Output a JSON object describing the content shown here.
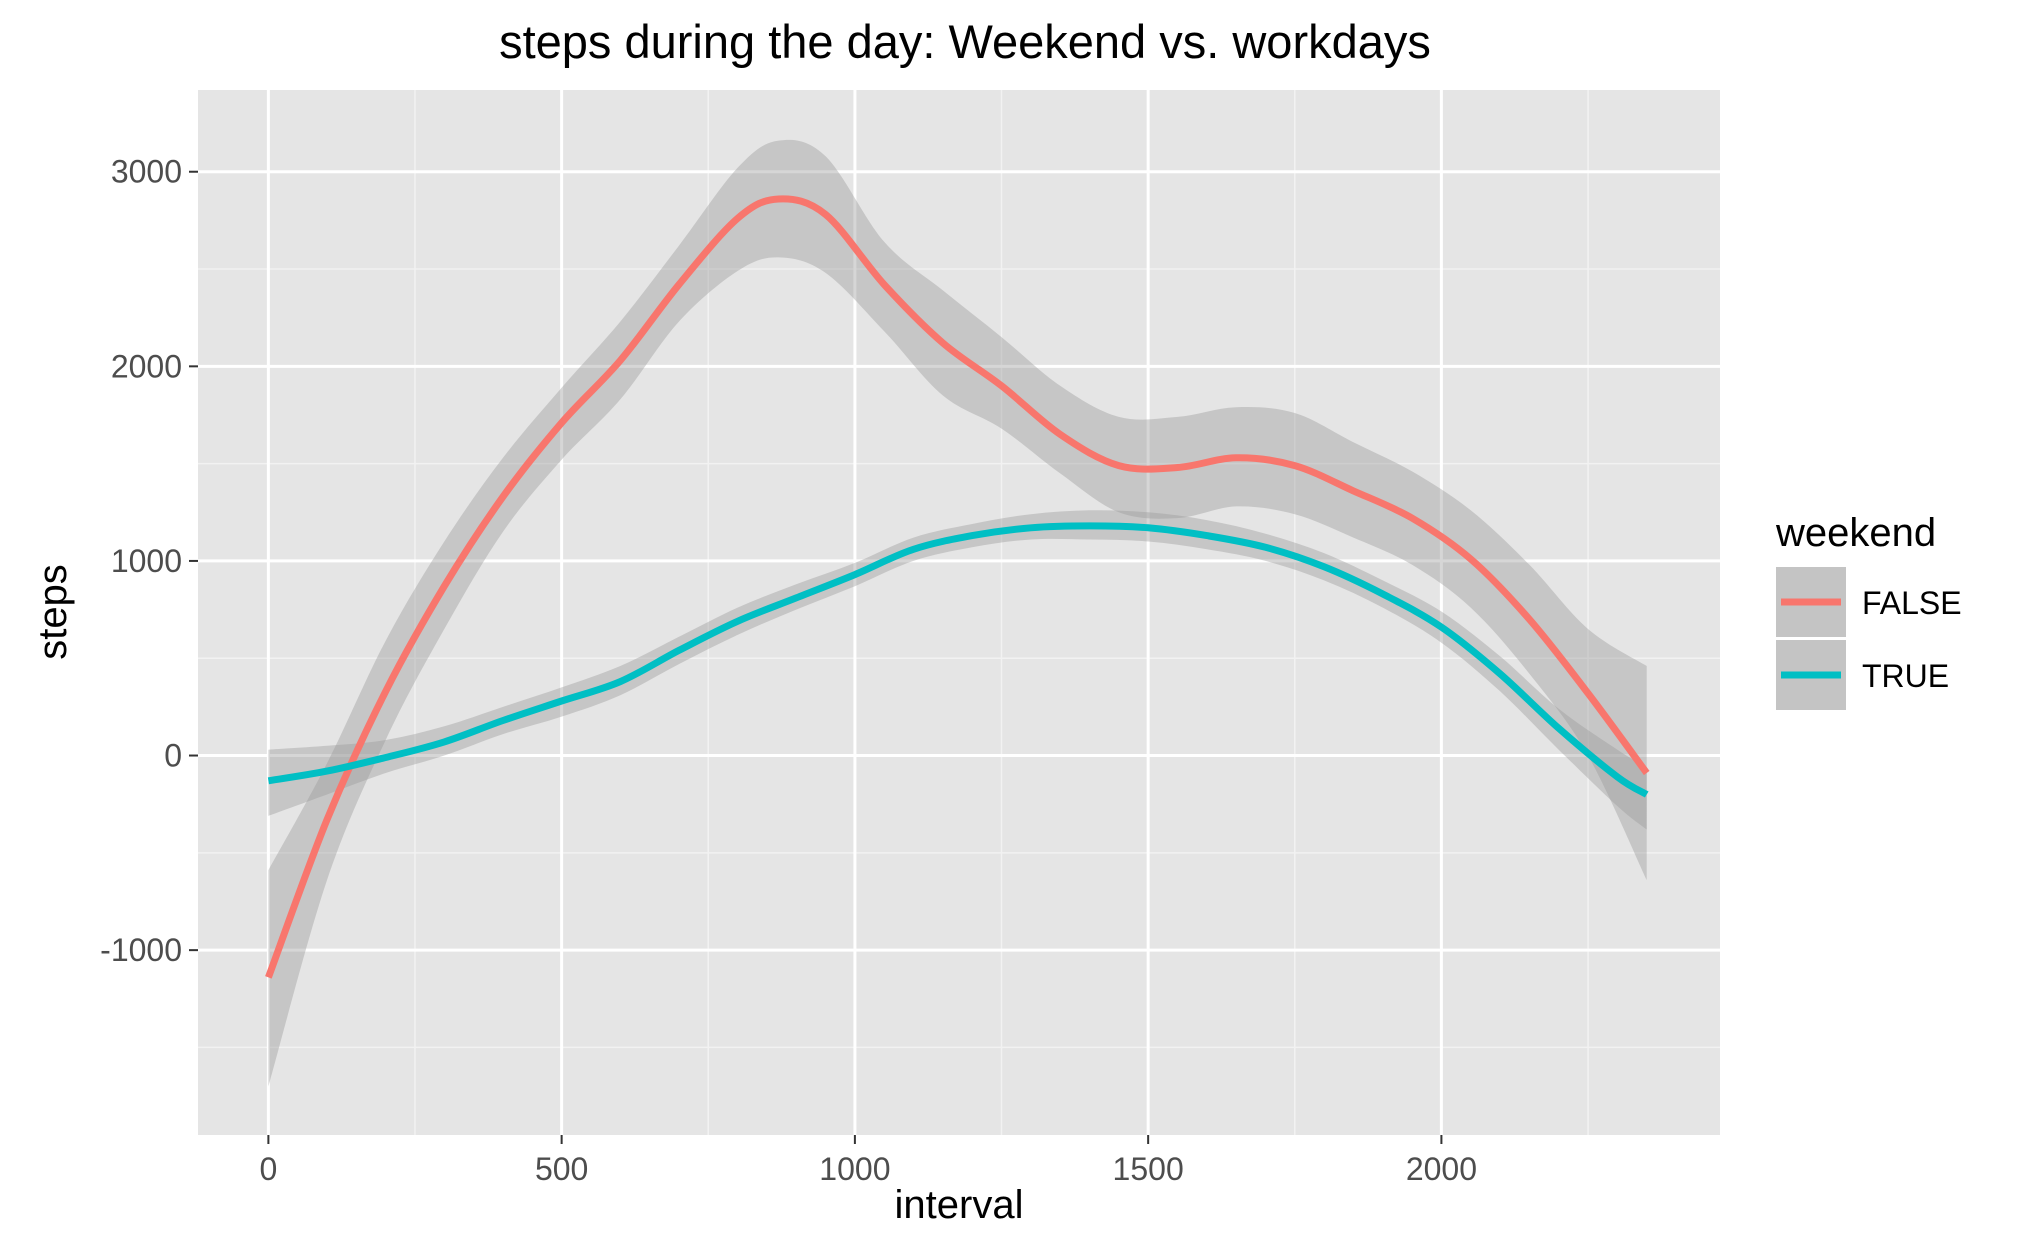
{
  "chart_data": {
    "type": "line",
    "title": "steps during the day: Weekend vs. workdays",
    "xlabel": "interval",
    "ylabel": "steps",
    "xlim": [
      -120,
      2475
    ],
    "ylim": [
      -1950,
      3420
    ],
    "x_ticks": [
      0,
      500,
      1000,
      1500,
      2000
    ],
    "x_tick_labels": [
      "0",
      "500",
      "1000",
      "1500",
      "2000"
    ],
    "y_ticks": [
      -1000,
      0,
      1000,
      2000,
      3000
    ],
    "y_tick_labels": [
      "-1000",
      "0",
      "1000",
      "2000",
      "3000"
    ],
    "grid": true,
    "legend": {
      "title": "weekend",
      "position": "right"
    },
    "series": [
      {
        "name": "FALSE",
        "color": "#F8766D",
        "band_color": "#999999",
        "points": [
          [
            0,
            -1140,
            -1700,
            -590
          ],
          [
            100,
            -330,
            -640,
            -40
          ],
          [
            200,
            330,
            80,
            590
          ],
          [
            300,
            870,
            650,
            1100
          ],
          [
            400,
            1330,
            1150,
            1530
          ],
          [
            500,
            1710,
            1520,
            1890
          ],
          [
            600,
            2030,
            1830,
            2230
          ],
          [
            700,
            2420,
            2230,
            2620
          ],
          [
            800,
            2760,
            2490,
            3020
          ],
          [
            870,
            2860,
            2560,
            3160
          ],
          [
            950,
            2780,
            2480,
            3080
          ],
          [
            1050,
            2420,
            2180,
            2640
          ],
          [
            1150,
            2120,
            1850,
            2390
          ],
          [
            1250,
            1900,
            1680,
            2150
          ],
          [
            1350,
            1650,
            1450,
            1900
          ],
          [
            1450,
            1490,
            1250,
            1740
          ],
          [
            1550,
            1480,
            1220,
            1740
          ],
          [
            1650,
            1530,
            1280,
            1790
          ],
          [
            1750,
            1490,
            1240,
            1760
          ],
          [
            1850,
            1360,
            1120,
            1610
          ],
          [
            1950,
            1220,
            980,
            1460
          ],
          [
            2050,
            1010,
            760,
            1260
          ],
          [
            2150,
            700,
            420,
            980
          ],
          [
            2250,
            320,
            0,
            650
          ],
          [
            2350,
            -90,
            -640,
            460
          ]
        ]
      },
      {
        "name": "TRUE",
        "color": "#00BFC4",
        "band_color": "#999999",
        "points": [
          [
            0,
            -130,
            -310,
            30
          ],
          [
            100,
            -80,
            -200,
            50
          ],
          [
            200,
            -10,
            -90,
            80
          ],
          [
            300,
            70,
            0,
            150
          ],
          [
            400,
            180,
            110,
            250
          ],
          [
            500,
            280,
            200,
            350
          ],
          [
            600,
            380,
            310,
            460
          ],
          [
            700,
            540,
            470,
            610
          ],
          [
            800,
            690,
            620,
            760
          ],
          [
            900,
            810,
            750,
            880
          ],
          [
            1000,
            930,
            870,
            990
          ],
          [
            1100,
            1060,
            1000,
            1120
          ],
          [
            1200,
            1130,
            1070,
            1190
          ],
          [
            1300,
            1170,
            1110,
            1240
          ],
          [
            1400,
            1180,
            1110,
            1260
          ],
          [
            1500,
            1170,
            1100,
            1250
          ],
          [
            1600,
            1130,
            1060,
            1210
          ],
          [
            1700,
            1070,
            1000,
            1140
          ],
          [
            1800,
            970,
            900,
            1040
          ],
          [
            1900,
            830,
            760,
            900
          ],
          [
            2000,
            660,
            580,
            740
          ],
          [
            2100,
            420,
            330,
            510
          ],
          [
            2200,
            140,
            30,
            240
          ],
          [
            2300,
            -110,
            -260,
            30
          ],
          [
            2350,
            -200,
            -380,
            -60
          ]
        ]
      }
    ]
  }
}
